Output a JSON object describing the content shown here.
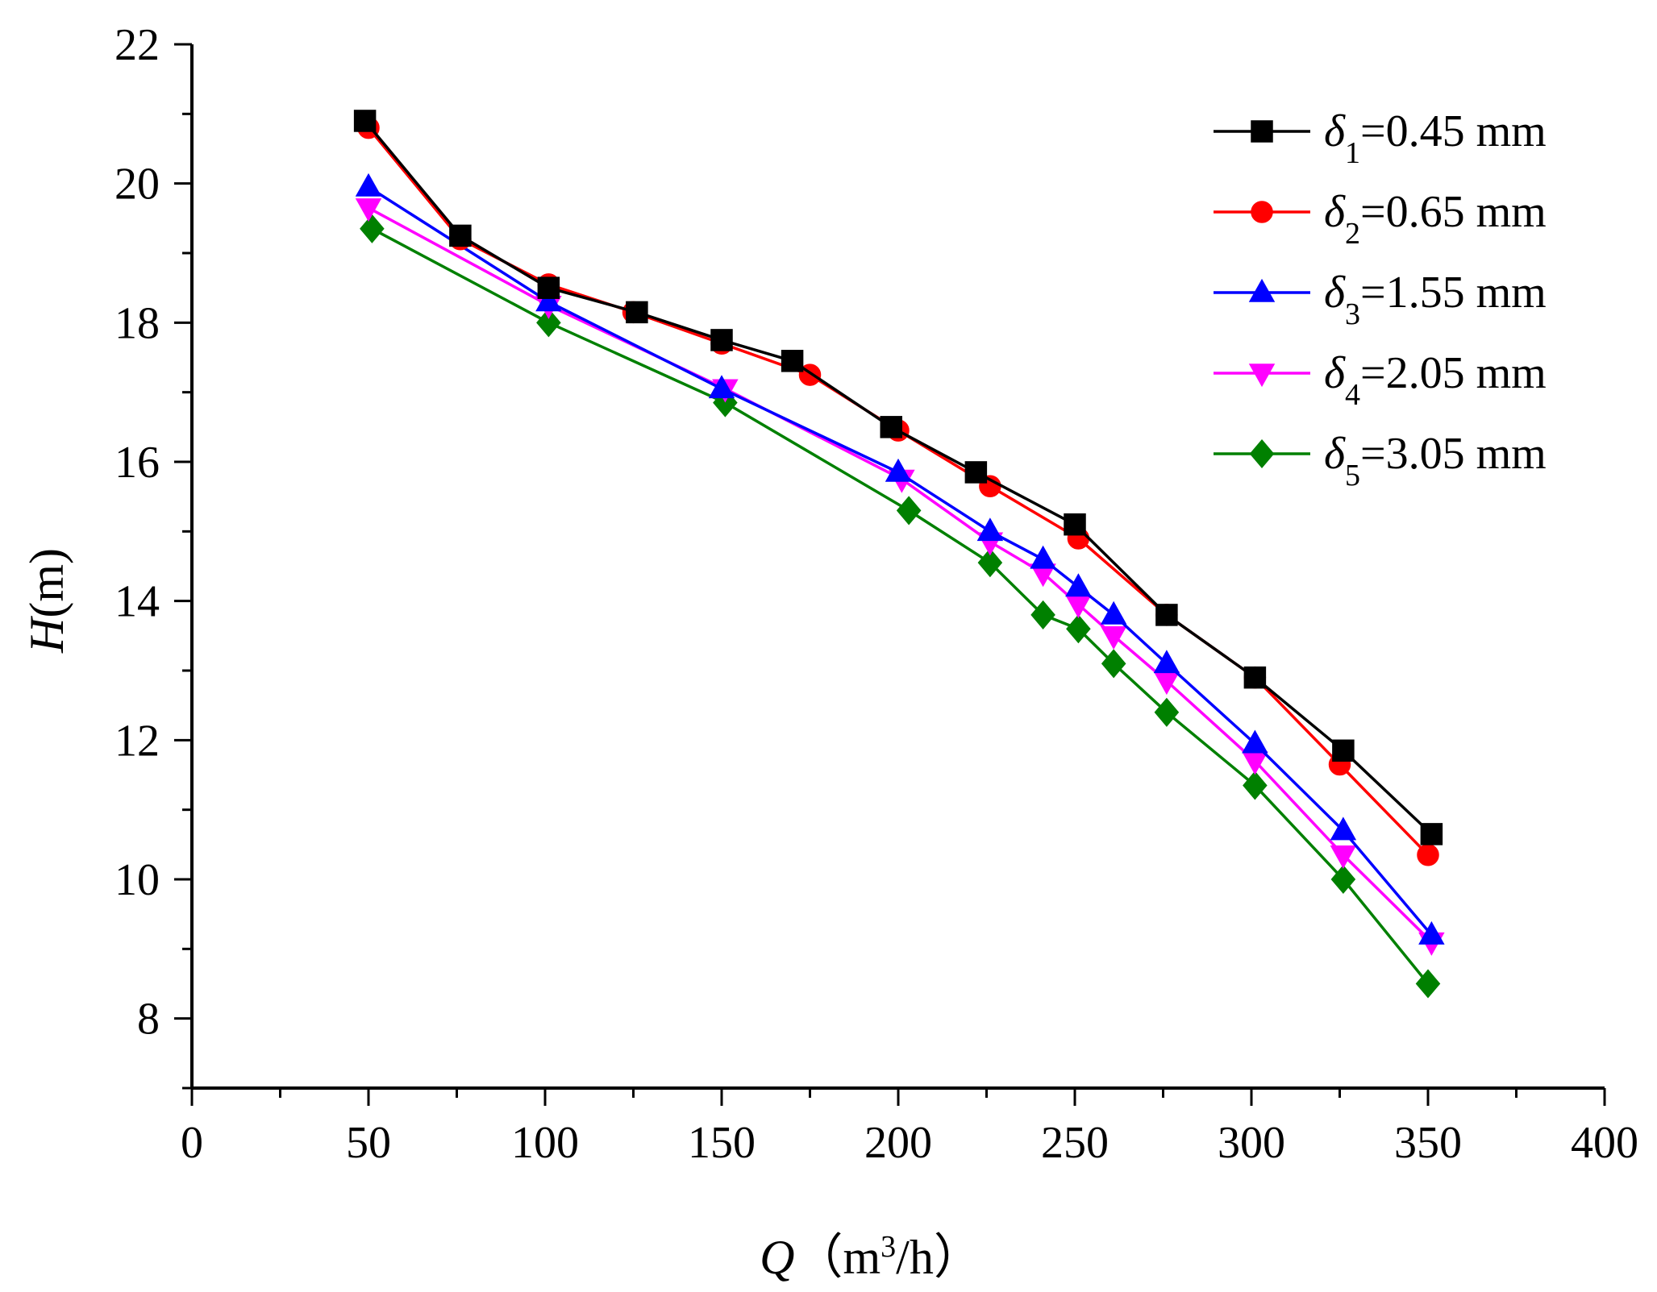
{
  "chart_data": {
    "type": "line",
    "title": "",
    "xlabel": {
      "symbol": "Q",
      "open": "（m",
      "sup": "3",
      "rest": "/h）"
    },
    "ylabel": {
      "symbol": "H",
      "rest": "(m)"
    },
    "xlim": [
      0,
      400
    ],
    "ylim": [
      7,
      22
    ],
    "x_ticks": [
      0,
      50,
      100,
      150,
      200,
      250,
      300,
      350,
      400
    ],
    "y_ticks": [
      8,
      10,
      12,
      14,
      16,
      18,
      20,
      22
    ],
    "grid": false,
    "legend_position": "top-right",
    "series": [
      {
        "name": "δ1=0.45 mm",
        "label": {
          "symbol": "δ",
          "sub": "1",
          "text": "=0.45 mm"
        },
        "color": "#000000",
        "marker": "square",
        "x": [
          49,
          76,
          101,
          126,
          150,
          170,
          198,
          222,
          250,
          276,
          301,
          326,
          351
        ],
        "y": [
          20.9,
          19.25,
          18.5,
          18.15,
          17.75,
          17.45,
          16.5,
          15.85,
          15.1,
          13.8,
          12.9,
          11.85,
          10.65
        ]
      },
      {
        "name": "δ2=0.65 mm",
        "label": {
          "symbol": "δ",
          "sub": "2",
          "text": "=0.65 mm"
        },
        "color": "#ff0000",
        "marker": "circle",
        "x": [
          50,
          76,
          101,
          125,
          150,
          175,
          200,
          226,
          251,
          276,
          301,
          325,
          350
        ],
        "y": [
          20.8,
          19.2,
          18.55,
          18.15,
          17.7,
          17.25,
          16.45,
          15.65,
          14.9,
          13.8,
          12.9,
          11.65,
          10.35
        ]
      },
      {
        "name": "δ3=1.55 mm",
        "label": {
          "symbol": "δ",
          "sub": "3",
          "text": "=1.55 mm"
        },
        "color": "#0000ff",
        "marker": "triangle-up",
        "x": [
          50,
          101,
          150,
          200,
          226,
          241,
          251,
          261,
          276,
          301,
          326,
          351
        ],
        "y": [
          19.95,
          18.3,
          17.05,
          15.85,
          15.0,
          14.6,
          14.2,
          13.8,
          13.1,
          11.95,
          10.7,
          9.2
        ]
      },
      {
        "name": "δ4=2.05 mm",
        "label": {
          "symbol": "δ",
          "sub": "4",
          "text": "=2.05 mm"
        },
        "color": "#ff00ff",
        "marker": "triangle-down",
        "x": [
          50,
          101,
          151,
          201,
          226,
          241,
          251,
          261,
          276,
          301,
          326,
          351
        ],
        "y": [
          19.65,
          18.25,
          17.05,
          15.75,
          14.85,
          14.4,
          13.95,
          13.5,
          12.85,
          11.7,
          10.35,
          9.1
        ]
      },
      {
        "name": "δ5=3.05 mm",
        "label": {
          "symbol": "δ",
          "sub": "5",
          "text": "=3.05 mm"
        },
        "color": "#008000",
        "marker": "diamond",
        "x": [
          51,
          101,
          151,
          203,
          226,
          241,
          251,
          261,
          276,
          301,
          326,
          350
        ],
        "y": [
          19.35,
          18.0,
          16.85,
          15.3,
          14.55,
          13.8,
          13.6,
          13.1,
          12.4,
          11.35,
          10.0,
          8.5
        ]
      }
    ]
  }
}
